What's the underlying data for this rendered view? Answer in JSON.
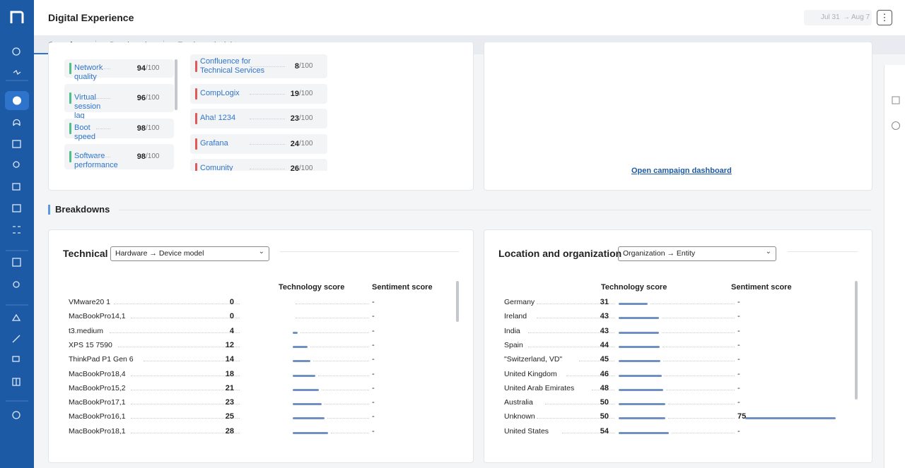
{
  "header": {
    "title": "Digital Experience",
    "date_from": "Jul 31",
    "date_to": "Aug 7"
  },
  "tabs": [
    "Overview",
    "Benchmark",
    "Employee insights"
  ],
  "score_suffix": "/100",
  "top_metrics": [
    {
      "name": "Network quality",
      "score": 94
    },
    {
      "name": "Virtual session lag",
      "score": 96
    },
    {
      "name": "Boot speed",
      "score": 98
    },
    {
      "name": "Software performance",
      "score": 98
    }
  ],
  "top_apps": [
    {
      "name": "Confluence for Technical Services",
      "score": 8
    },
    {
      "name": "CompLogix",
      "score": 19
    },
    {
      "name": "Aha! 1234",
      "score": 23
    },
    {
      "name": "Grafana",
      "score": 24
    },
    {
      "name": "Comunity",
      "score": 26
    }
  ],
  "campaign_link": "Open campaign dashboard",
  "section_title": "Breakdowns",
  "panels": [
    {
      "title": "Technical",
      "select": "Hardware → Device model",
      "columns": [
        "Technology score",
        "Sentiment score"
      ],
      "rows": [
        {
          "name": "VMware20 1",
          "tech": 0,
          "sentiment": "-"
        },
        {
          "name": "MacBookPro14,1",
          "tech": 0,
          "sentiment": "-"
        },
        {
          "name": "t3.medium",
          "tech": 4,
          "sentiment": "-"
        },
        {
          "name": "XPS 15 7590",
          "tech": 12,
          "sentiment": "-"
        },
        {
          "name": "ThinkPad P1 Gen 6",
          "tech": 14,
          "sentiment": "-"
        },
        {
          "name": "MacBookPro18,4",
          "tech": 18,
          "sentiment": "-"
        },
        {
          "name": "MacBookPro15,2",
          "tech": 21,
          "sentiment": "-"
        },
        {
          "name": "MacBookPro17,1",
          "tech": 23,
          "sentiment": "-"
        },
        {
          "name": "MacBookPro16,1",
          "tech": 25,
          "sentiment": "-"
        },
        {
          "name": "MacBookPro18,1",
          "tech": 28,
          "sentiment": "-"
        }
      ]
    },
    {
      "title": "Location and organization",
      "select": "Organization → Entity",
      "columns": [
        "Technology score",
        "Sentiment score"
      ],
      "rows": [
        {
          "name": "Germany",
          "tech": 31,
          "sentiment": "-"
        },
        {
          "name": "Ireland",
          "tech": 43,
          "sentiment": "-"
        },
        {
          "name": "India",
          "tech": 43,
          "sentiment": "-"
        },
        {
          "name": "Spain",
          "tech": 44,
          "sentiment": "-"
        },
        {
          "name": "\"Switzerland, VD\"",
          "tech": 45,
          "sentiment": "-"
        },
        {
          "name": "United Kingdom",
          "tech": 46,
          "sentiment": "-"
        },
        {
          "name": "United Arab Emirates",
          "tech": 48,
          "sentiment": "-"
        },
        {
          "name": "Australia",
          "tech": 50,
          "sentiment": "-"
        },
        {
          "name": "Unknown",
          "tech": 50,
          "sentiment": 75
        },
        {
          "name": "United States",
          "tech": 54,
          "sentiment": "-"
        }
      ]
    }
  ]
}
